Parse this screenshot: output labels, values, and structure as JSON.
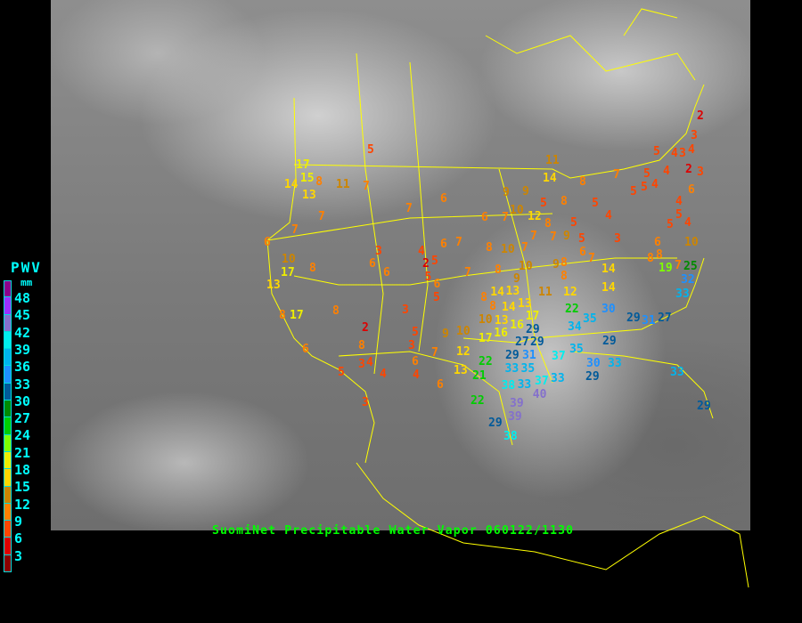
{
  "title": "SuomiNet Precipitable Water Vapor 060122/1130",
  "legend": {
    "title": "PWV",
    "unit": "mm",
    "labels": [
      "48",
      "45",
      "42",
      "39",
      "36",
      "33",
      "30",
      "27",
      "24",
      "21",
      "18",
      "15",
      "12",
      "9",
      "6",
      "3"
    ],
    "colors": [
      "#8b008b",
      "#9b30ff",
      "#8470cc",
      "#00eeee",
      "#00b4ee",
      "#1e90ff",
      "#005a9a",
      "#008b00",
      "#00cd00",
      "#7fff00",
      "#eeee00",
      "#ffd700",
      "#cd8500",
      "#ff8000",
      "#ff4500",
      "#dd0000",
      "#8b0000"
    ],
    "bin_edges": [
      48,
      45,
      42,
      39,
      36,
      33,
      30,
      27,
      24,
      21,
      18,
      15,
      12,
      9,
      6,
      3,
      0
    ]
  },
  "border_color": "#ffff00",
  "stations": [
    2,
    3,
    5,
    4,
    3,
    4,
    2,
    3,
    5,
    4,
    5,
    5,
    4,
    6,
    4,
    5,
    5,
    4,
    6,
    8,
    8,
    10,
    19,
    7,
    25,
    32,
    33,
    27,
    31,
    29,
    30,
    29,
    35,
    34,
    33,
    29,
    30,
    33,
    37,
    35,
    33,
    29,
    11,
    14,
    8,
    7,
    5,
    4,
    3,
    8,
    5,
    5,
    6,
    7,
    8,
    9,
    5,
    9,
    9,
    10,
    12,
    7,
    7,
    7,
    10,
    6,
    7,
    6,
    6,
    7,
    8,
    14,
    14,
    12,
    11,
    8,
    9,
    8,
    10,
    8,
    7,
    8,
    14,
    13,
    9,
    13,
    10,
    8,
    13,
    14,
    16,
    17,
    29,
    29,
    27,
    16,
    17,
    10,
    9,
    12,
    13,
    22,
    21,
    29,
    31,
    33,
    35,
    38,
    33,
    40,
    37,
    39,
    39,
    29,
    38,
    22,
    22,
    5,
    17,
    15,
    8,
    14,
    13,
    11,
    7,
    7,
    7,
    7,
    6,
    10,
    17,
    8,
    13,
    3,
    6,
    6,
    4,
    2,
    5,
    5,
    6,
    5,
    3,
    8,
    8,
    17,
    2,
    5,
    3,
    8,
    6,
    7,
    6,
    4,
    3,
    4,
    5,
    4,
    6,
    3
  ]
}
